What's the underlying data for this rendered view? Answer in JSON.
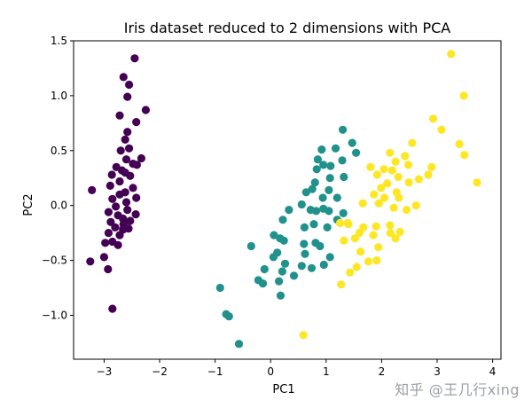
{
  "chart_data": {
    "type": "scatter",
    "title": "Iris dataset reduced to 2 dimensions with PCA",
    "xlabel": "PC1",
    "ylabel": "PC2",
    "xlim": [
      -3.55,
      4.15
    ],
    "ylim": [
      -1.4,
      1.5
    ],
    "xticks": [
      -3,
      -2,
      -1,
      0,
      1,
      2,
      3,
      4
    ],
    "xtick_labels": [
      "−3",
      "−2",
      "−1",
      "0",
      "1",
      "2",
      "3",
      "4"
    ],
    "yticks": [
      -1.0,
      -0.5,
      0.0,
      0.5,
      1.0,
      1.5
    ],
    "ytick_labels": [
      "−1.0",
      "−0.5",
      "0.0",
      "0.5",
      "1.0",
      "1.5"
    ],
    "grid": false,
    "series": [
      {
        "color": "#440154",
        "points": [
          [
            -2.45,
            1.34
          ],
          [
            -2.65,
            1.17
          ],
          [
            -2.55,
            1.1
          ],
          [
            -2.58,
            0.99
          ],
          [
            -2.72,
            0.82
          ],
          [
            -2.25,
            0.87
          ],
          [
            -2.42,
            0.76
          ],
          [
            -2.58,
            0.67
          ],
          [
            -2.62,
            0.6
          ],
          [
            -2.55,
            0.52
          ],
          [
            -2.7,
            0.5
          ],
          [
            -2.33,
            0.43
          ],
          [
            -2.6,
            0.42
          ],
          [
            -2.48,
            0.38
          ],
          [
            -2.78,
            0.35
          ],
          [
            -2.68,
            0.32
          ],
          [
            -2.41,
            0.37
          ],
          [
            -2.62,
            0.3
          ],
          [
            -2.86,
            0.28
          ],
          [
            -2.53,
            0.27
          ],
          [
            -2.72,
            0.22
          ],
          [
            -2.89,
            0.18
          ],
          [
            -2.48,
            0.16
          ],
          [
            -2.62,
            0.12
          ],
          [
            -3.22,
            0.14
          ],
          [
            -2.72,
            0.1
          ],
          [
            -2.42,
            0.07
          ],
          [
            -2.85,
            0.06
          ],
          [
            -2.6,
            0.03
          ],
          [
            -2.79,
            -0.01
          ],
          [
            -2.58,
            -0.04
          ],
          [
            -2.92,
            -0.06
          ],
          [
            -2.43,
            -0.08
          ],
          [
            -2.75,
            -0.09
          ],
          [
            -2.66,
            -0.12
          ],
          [
            -2.53,
            -0.14
          ],
          [
            -2.88,
            -0.15
          ],
          [
            -2.65,
            -0.17
          ],
          [
            -2.8,
            -0.2
          ],
          [
            -2.56,
            -0.21
          ],
          [
            -2.92,
            -0.25
          ],
          [
            -2.72,
            -0.27
          ],
          [
            -2.85,
            -0.33
          ],
          [
            -2.98,
            -0.34
          ],
          [
            -2.75,
            -0.36
          ],
          [
            -3.0,
            -0.47
          ],
          [
            -3.25,
            -0.51
          ],
          [
            -2.93,
            -0.58
          ],
          [
            -2.85,
            -0.94
          ],
          [
            -2.66,
            -0.22
          ]
        ]
      },
      {
        "color": "#21918c",
        "points": [
          [
            1.3,
            0.69
          ],
          [
            1.47,
            0.57
          ],
          [
            0.92,
            0.51
          ],
          [
            1.54,
            0.48
          ],
          [
            0.85,
            0.42
          ],
          [
            1.17,
            0.52
          ],
          [
            0.83,
            0.33
          ],
          [
            0.95,
            0.37
          ],
          [
            1.08,
            0.36
          ],
          [
            1.29,
            0.41
          ],
          [
            0.8,
            0.21
          ],
          [
            0.75,
            0.15
          ],
          [
            1.07,
            0.25
          ],
          [
            1.32,
            0.26
          ],
          [
            1.05,
            0.14
          ],
          [
            0.64,
            0.12
          ],
          [
            0.94,
            0.07
          ],
          [
            1.2,
            0.07
          ],
          [
            0.95,
            -0.03
          ],
          [
            0.33,
            -0.04
          ],
          [
            0.56,
            0.01
          ],
          [
            0.72,
            -0.04
          ],
          [
            0.82,
            -0.05
          ],
          [
            1.05,
            -0.05
          ],
          [
            1.31,
            -0.07
          ],
          [
            1.2,
            -0.13
          ],
          [
            0.61,
            -0.2
          ],
          [
            0.22,
            -0.13
          ],
          [
            0.78,
            -0.17
          ],
          [
            1.02,
            -0.2
          ],
          [
            0.06,
            -0.27
          ],
          [
            0.17,
            -0.3
          ],
          [
            0.24,
            -0.32
          ],
          [
            0.6,
            -0.35
          ],
          [
            0.81,
            -0.34
          ],
          [
            0.89,
            -0.37
          ],
          [
            -0.35,
            -0.37
          ],
          [
            0.12,
            -0.43
          ],
          [
            0.05,
            -0.47
          ],
          [
            0.62,
            -0.44
          ],
          [
            1.07,
            -0.47
          ],
          [
            0.26,
            -0.53
          ],
          [
            0.56,
            -0.55
          ],
          [
            0.74,
            -0.57
          ],
          [
            0.96,
            -0.54
          ],
          [
            -0.11,
            -0.58
          ],
          [
            0.21,
            -0.6
          ],
          [
            0.42,
            -0.64
          ],
          [
            -0.22,
            -0.68
          ],
          [
            -0.14,
            -0.71
          ],
          [
            0.15,
            -0.69
          ],
          [
            0.18,
            -0.82
          ],
          [
            -0.91,
            -0.75
          ],
          [
            -0.8,
            -0.99
          ],
          [
            -0.75,
            -1.01
          ],
          [
            -0.57,
            -1.26
          ]
        ]
      },
      {
        "color": "#fde725",
        "points": [
          [
            3.25,
            1.38
          ],
          [
            3.48,
            1.0
          ],
          [
            2.93,
            0.79
          ],
          [
            3.08,
            0.69
          ],
          [
            2.55,
            0.57
          ],
          [
            3.4,
            0.56
          ],
          [
            3.49,
            0.46
          ],
          [
            2.15,
            0.48
          ],
          [
            2.42,
            0.45
          ],
          [
            2.25,
            0.4
          ],
          [
            2.48,
            0.37
          ],
          [
            1.8,
            0.35
          ],
          [
            2.9,
            0.35
          ],
          [
            2.04,
            0.33
          ],
          [
            2.19,
            0.32
          ],
          [
            1.92,
            0.28
          ],
          [
            2.3,
            0.26
          ],
          [
            2.84,
            0.28
          ],
          [
            2.67,
            0.24
          ],
          [
            3.72,
            0.21
          ],
          [
            2.1,
            0.2
          ],
          [
            2.49,
            0.21
          ],
          [
            1.99,
            0.16
          ],
          [
            2.27,
            0.12
          ],
          [
            1.86,
            0.1
          ],
          [
            2.05,
            0.07
          ],
          [
            2.31,
            0.07
          ],
          [
            1.95,
            0.02
          ],
          [
            2.22,
            -0.02
          ],
          [
            2.62,
            0.0
          ],
          [
            2.45,
            -0.04
          ],
          [
            1.66,
            0.02
          ],
          [
            1.25,
            -0.16
          ],
          [
            1.39,
            -0.16
          ],
          [
            1.4,
            -0.17
          ],
          [
            1.67,
            -0.2
          ],
          [
            1.9,
            -0.19
          ],
          [
            2.15,
            -0.18
          ],
          [
            2.33,
            -0.24
          ],
          [
            1.6,
            -0.25
          ],
          [
            1.85,
            -0.27
          ],
          [
            2.16,
            -0.25
          ],
          [
            2.25,
            -0.3
          ],
          [
            1.52,
            -0.3
          ],
          [
            1.32,
            -0.32
          ],
          [
            1.94,
            -0.38
          ],
          [
            1.62,
            -0.42
          ],
          [
            1.76,
            -0.51
          ],
          [
            1.91,
            -0.5
          ],
          [
            1.55,
            -0.56
          ],
          [
            1.43,
            -0.61
          ],
          [
            1.27,
            -0.72
          ],
          [
            0.59,
            -1.18
          ]
        ]
      }
    ]
  },
  "watermark": "知乎 @王几行xing"
}
